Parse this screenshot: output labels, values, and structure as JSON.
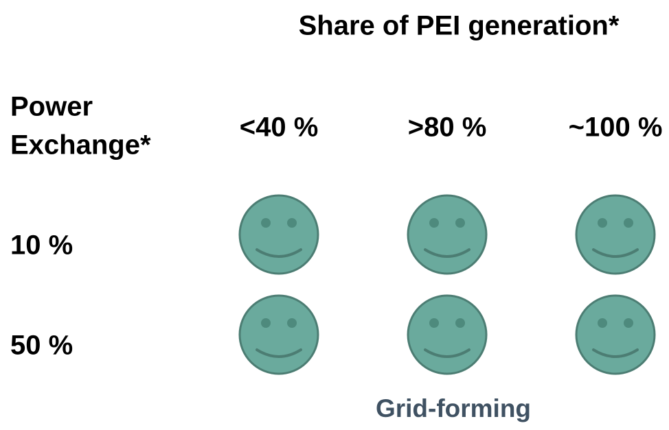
{
  "title": "Share of PEI generation*",
  "row_header": [
    "Power",
    "Exchange*"
  ],
  "columns": [
    "<40 %",
    ">80 %",
    "~100 %"
  ],
  "rows": [
    "10 %",
    "50 %"
  ],
  "footer": "Grid-forming"
}
